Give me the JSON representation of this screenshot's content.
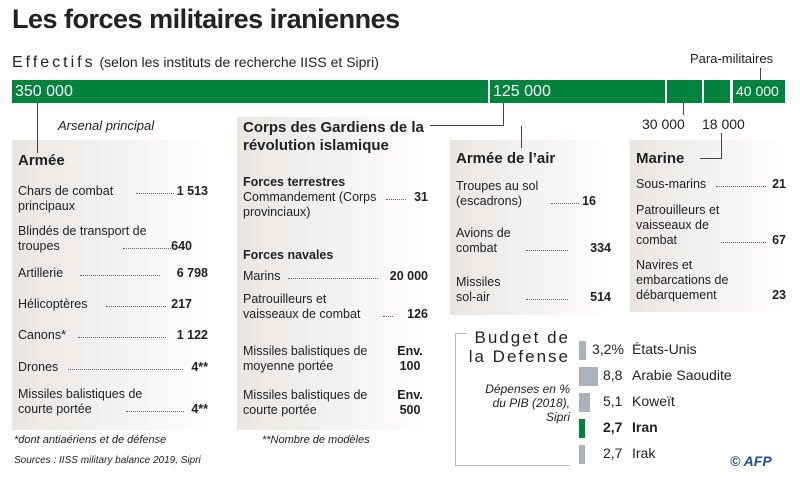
{
  "title": "Les forces militaires iraniennes",
  "effectifs": {
    "label": "Effectifs",
    "note": "(selon les instituts de recherche IISS et Sipri)",
    "para_label": "Para-militaires",
    "segments": [
      {
        "name": "Armée",
        "value": "350 000"
      },
      {
        "name": "Corps des Gardiens",
        "value": "125 000"
      },
      {
        "name": "Armée de l'air",
        "value": "30 000"
      },
      {
        "name": "Marine",
        "value": "18 000"
      },
      {
        "name": "Para-militaires",
        "value": "40 000"
      }
    ]
  },
  "arsenal_label": "Arsenal principal",
  "armee": {
    "title": "Armée",
    "rows": [
      {
        "label": "Chars de combat principaux",
        "value": "1 513"
      },
      {
        "label": "Blindés de transport de troupes",
        "value": "640"
      },
      {
        "label": "Artillerie",
        "value": "6 798"
      },
      {
        "label": "Hélicoptères",
        "value": "217"
      },
      {
        "label": "Canons*",
        "value": "1 122"
      },
      {
        "label": "Drones",
        "value": "4**"
      },
      {
        "label": "Missiles balistiques de courte portée",
        "value": "4**"
      }
    ]
  },
  "corps": {
    "title": "Corps des Gardiens de la révolution islamique",
    "terrestres": "Forces terrestres",
    "navales": "Forces navales",
    "rows": [
      {
        "label": "Commandement (Corps provinciaux)",
        "value": "31"
      },
      {
        "label": "Marins",
        "value": "20 000"
      },
      {
        "label": "Patrouilleurs et vaisseaux de combat",
        "value": "126"
      },
      {
        "label": "Missiles balistiques de moyenne portée",
        "value": "Env. 100"
      },
      {
        "label": "Missiles balistiques de courte portée",
        "value": "Env. 500"
      }
    ]
  },
  "air": {
    "title": "Armée de l’air",
    "rows": [
      {
        "label": "Troupes au sol (escadrons)",
        "value": "16"
      },
      {
        "label": "Avions de combat",
        "value": "334"
      },
      {
        "label": "Missiles sol-air",
        "value": "514"
      }
    ]
  },
  "marine": {
    "title": "Marine",
    "rows": [
      {
        "label": "Sous-marins",
        "value": "21"
      },
      {
        "label": "Patrouilleurs et vaisseaux de combat",
        "value": "67"
      },
      {
        "label": "Navires et embarcations de débarquement",
        "value": "23"
      }
    ]
  },
  "footnotes": {
    "star": "*dont antiaériens et de défense",
    "dstar": "**Nombre de modèles",
    "sources": "Sources : IISS military balance 2019, Sipri"
  },
  "credit": "© AFP",
  "colors": {
    "green": "#00843d",
    "gray_bar": "#a9b3b9"
  },
  "chart_data": {
    "type": "bar",
    "title": "Budget de la Defense",
    "subtitle": "Dépenses en % du PIB (2018), Sipri",
    "categories": [
      "États-Unis",
      "Arabie Saoudite",
      "Koweït",
      "Iran",
      "Irak"
    ],
    "values": [
      3.2,
      8.8,
      5.1,
      2.7,
      2.7
    ],
    "labels": [
      "3,2%",
      "8,8",
      "5,1",
      "2,7",
      "2,7"
    ],
    "highlight": "Iran",
    "unit": "% du PIB"
  }
}
